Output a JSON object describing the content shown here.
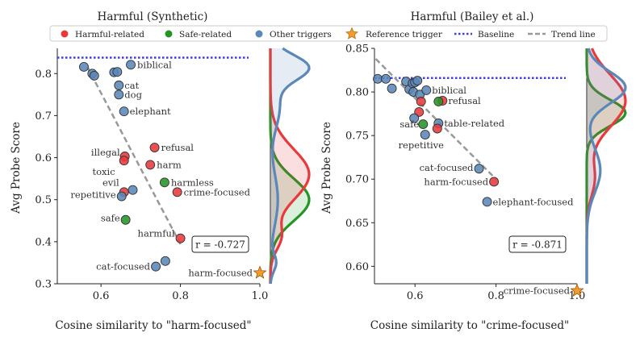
{
  "legend": {
    "items": [
      {
        "label": "Harmful-related",
        "kind": "dot",
        "color": "#e8393c"
      },
      {
        "label": "Safe-related",
        "kind": "dot",
        "color": "#259427"
      },
      {
        "label": "Other triggers",
        "kind": "dot",
        "color": "#5b88b8"
      },
      {
        "label": "Reference trigger",
        "kind": "star",
        "color": "#f59b2c"
      },
      {
        "label": "Baseline",
        "kind": "dotted-line",
        "color": "#3d3df0"
      },
      {
        "label": "Trend line",
        "kind": "dashed-line",
        "color": "#999999"
      }
    ]
  },
  "colors": {
    "harmful": "#e8393c",
    "safe": "#259427",
    "other": "#5b88b8",
    "reference": "#f59b2c",
    "baseline": "#3d3df0",
    "trend": "#999999"
  },
  "chart_data": [
    {
      "type": "scatter",
      "title": "Harmful (Synthetic)",
      "xlabel": "Cosine similarity to \"harm-focused\"",
      "ylabel": "Avg Probe Score",
      "xlim": [
        0.49,
        1.0
      ],
      "ylim": [
        0.3,
        0.86
      ],
      "xticks": [
        "0.6",
        "0.8",
        "1.0"
      ],
      "xtick_values": [
        0.6,
        0.8,
        1.0
      ],
      "yticks": [
        "0.3",
        "0.4",
        "0.5",
        "0.6",
        "0.7",
        "0.8"
      ],
      "ytick_values": [
        0.3,
        0.4,
        0.5,
        0.6,
        0.7,
        0.8
      ],
      "baseline": 0.838,
      "r_text": "r = -0.727",
      "trend": {
        "x": [
          0.565,
          0.8
        ],
        "y": [
          0.817,
          0.394
        ]
      },
      "points": [
        {
          "x": 0.557,
          "y": 0.816,
          "cat": "other",
          "label": ""
        },
        {
          "x": 0.578,
          "y": 0.8,
          "cat": "other",
          "label": ""
        },
        {
          "x": 0.583,
          "y": 0.795,
          "cat": "other",
          "label": ""
        },
        {
          "x": 0.633,
          "y": 0.803,
          "cat": "other",
          "label": ""
        },
        {
          "x": 0.641,
          "y": 0.804,
          "cat": "other",
          "label": ""
        },
        {
          "x": 0.675,
          "y": 0.821,
          "cat": "other",
          "label": "biblical"
        },
        {
          "x": 0.645,
          "y": 0.772,
          "cat": "other",
          "label": "cat"
        },
        {
          "x": 0.645,
          "y": 0.75,
          "cat": "other",
          "label": "dog"
        },
        {
          "x": 0.658,
          "y": 0.71,
          "cat": "other",
          "label": "elephant"
        },
        {
          "x": 0.735,
          "y": 0.624,
          "cat": "harmful",
          "label": "refusal"
        },
        {
          "x": 0.66,
          "y": 0.603,
          "cat": "harmful",
          "label": "illegal"
        },
        {
          "x": 0.658,
          "y": 0.593,
          "cat": "harmful",
          "label": "toxic"
        },
        {
          "x": 0.724,
          "y": 0.583,
          "cat": "harmful",
          "label": "harm"
        },
        {
          "x": 0.76,
          "y": 0.541,
          "cat": "safe",
          "label": "harmless"
        },
        {
          "x": 0.792,
          "y": 0.518,
          "cat": "harmful",
          "label": "crime-focused"
        },
        {
          "x": 0.658,
          "y": 0.518,
          "cat": "harmful",
          "label": "evil"
        },
        {
          "x": 0.68,
          "y": 0.523,
          "cat": "other",
          "label": ""
        },
        {
          "x": 0.652,
          "y": 0.508,
          "cat": "other",
          "label": "repetitive"
        },
        {
          "x": 0.662,
          "y": 0.452,
          "cat": "safe",
          "label": "safe"
        },
        {
          "x": 0.8,
          "y": 0.408,
          "cat": "harmful",
          "label": "harmful"
        },
        {
          "x": 0.762,
          "y": 0.354,
          "cat": "other",
          "label": ""
        },
        {
          "x": 0.738,
          "y": 0.341,
          "cat": "other",
          "label": "cat-focused"
        },
        {
          "x": 1.0,
          "y": 0.326,
          "cat": "reference",
          "label": "harm-focused"
        }
      ],
      "density_range": [
        0.3,
        0.86
      ]
    },
    {
      "type": "scatter",
      "title": "Harmful (Bailey et al.)",
      "xlabel": "Cosine similarity to \"crime-focused\"",
      "ylabel": "Avg Probe Score",
      "xlim": [
        0.5,
        1.0
      ],
      "ylim": [
        0.58,
        0.85
      ],
      "xticks": [
        "0.6",
        "0.8",
        "1.0"
      ],
      "xtick_values": [
        0.6,
        0.8,
        1.0
      ],
      "yticks": [
        "0.60",
        "0.65",
        "0.70",
        "0.75",
        "0.80",
        "0.85"
      ],
      "ytick_values": [
        0.6,
        0.65,
        0.7,
        0.75,
        0.8,
        0.85
      ],
      "baseline": 0.816,
      "r_text": "r = -0.871",
      "trend": {
        "x": [
          0.503,
          0.8
        ],
        "y": [
          0.838,
          0.7
        ]
      },
      "points": [
        {
          "x": 0.508,
          "y": 0.815,
          "cat": "other",
          "label": ""
        },
        {
          "x": 0.528,
          "y": 0.815,
          "cat": "other",
          "label": ""
        },
        {
          "x": 0.543,
          "y": 0.804,
          "cat": "other",
          "label": ""
        },
        {
          "x": 0.578,
          "y": 0.812,
          "cat": "other",
          "label": ""
        },
        {
          "x": 0.586,
          "y": 0.803,
          "cat": "other",
          "label": ""
        },
        {
          "x": 0.594,
          "y": 0.81,
          "cat": "other",
          "label": ""
        },
        {
          "x": 0.6,
          "y": 0.811,
          "cat": "other",
          "label": ""
        },
        {
          "x": 0.606,
          "y": 0.813,
          "cat": "other",
          "label": ""
        },
        {
          "x": 0.596,
          "y": 0.8,
          "cat": "other",
          "label": ""
        },
        {
          "x": 0.612,
          "y": 0.797,
          "cat": "other",
          "label": ""
        },
        {
          "x": 0.628,
          "y": 0.802,
          "cat": "other",
          "label": "biblical"
        },
        {
          "x": 0.615,
          "y": 0.789,
          "cat": "harmful",
          "label": ""
        },
        {
          "x": 0.668,
          "y": 0.79,
          "cat": "harmful",
          "label": "refusal"
        },
        {
          "x": 0.658,
          "y": 0.789,
          "cat": "safe",
          "label": ""
        },
        {
          "x": 0.61,
          "y": 0.777,
          "cat": "harmful",
          "label": ""
        },
        {
          "x": 0.598,
          "y": 0.77,
          "cat": "other",
          "label": ""
        },
        {
          "x": 0.62,
          "y": 0.763,
          "cat": "safe",
          "label": "safe"
        },
        {
          "x": 0.658,
          "y": 0.764,
          "cat": "other",
          "label": "table-related"
        },
        {
          "x": 0.655,
          "y": 0.758,
          "cat": "harmful",
          "label": ""
        },
        {
          "x": 0.625,
          "y": 0.751,
          "cat": "other",
          "label": "repetitive"
        },
        {
          "x": 0.758,
          "y": 0.712,
          "cat": "other",
          "label": "cat-focused"
        },
        {
          "x": 0.795,
          "y": 0.697,
          "cat": "harmful",
          "label": "harm-focused"
        },
        {
          "x": 0.778,
          "y": 0.674,
          "cat": "other",
          "label": "elephant-focused"
        },
        {
          "x": 1.0,
          "y": 0.572,
          "cat": "reference",
          "label": "crime-focused"
        }
      ],
      "density_range": [
        0.58,
        0.85
      ]
    }
  ]
}
